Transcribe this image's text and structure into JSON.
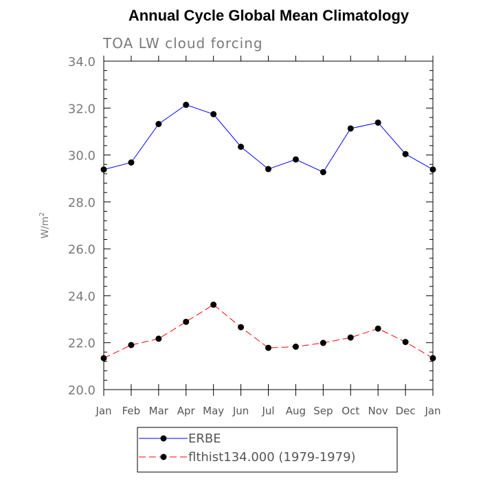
{
  "chart_data": {
    "type": "line",
    "title": "Annual Cycle Global Mean Climatology",
    "subtitle": "TOA LW cloud forcing",
    "ylabel": "W/m",
    "ylabel_superscript": "2",
    "ylim": [
      20.0,
      34.0
    ],
    "yticks": [
      "20.0",
      "22.0",
      "24.0",
      "26.0",
      "28.0",
      "30.0",
      "32.0",
      "34.0"
    ],
    "categories": [
      "Jan",
      "Feb",
      "Mar",
      "Apr",
      "May",
      "Jun",
      "Jul",
      "Aug",
      "Sep",
      "Oct",
      "Nov",
      "Dec",
      "Jan"
    ],
    "grid": false,
    "legend_position": "bottom",
    "series": [
      {
        "name": "ERBE",
        "color": "#0000ff",
        "dash": "solid",
        "values": [
          29.38,
          29.68,
          31.32,
          32.14,
          31.74,
          30.35,
          29.4,
          29.81,
          29.27,
          31.13,
          31.38,
          30.04,
          29.38
        ]
      },
      {
        "name": "flthist134.000 (1979-1979)",
        "color": "#ff0000",
        "dash": "dashed",
        "values": [
          21.34,
          21.9,
          22.17,
          22.89,
          23.62,
          22.66,
          21.78,
          21.83,
          21.99,
          22.22,
          22.6,
          22.03,
          21.34
        ]
      }
    ]
  }
}
